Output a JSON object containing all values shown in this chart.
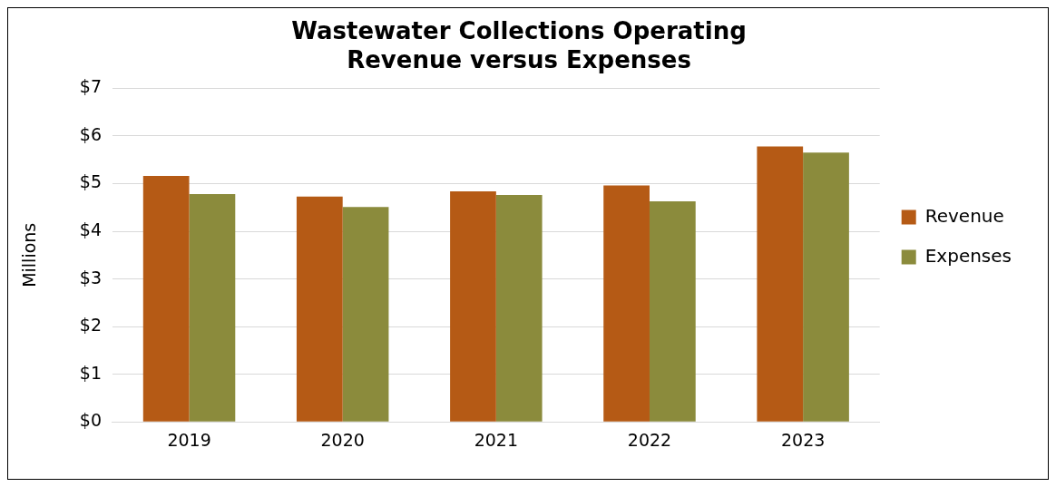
{
  "chart_data": {
    "type": "bar",
    "title": "Wastewater Collections Operating\nRevenue versus Expenses",
    "ylabel": "Millions",
    "categories": [
      "2019",
      "2020",
      "2021",
      "2022",
      "2023"
    ],
    "series": [
      {
        "name": "Revenue",
        "color": "#b55a15",
        "values": [
          5.16,
          4.73,
          4.84,
          4.96,
          5.78
        ]
      },
      {
        "name": "Expenses",
        "color": "#8b8b3c",
        "values": [
          4.78,
          4.51,
          4.76,
          4.63,
          5.65
        ]
      }
    ],
    "ylim": [
      0,
      7
    ],
    "yticks": [
      {
        "value": 0,
        "label": "$0"
      },
      {
        "value": 1,
        "label": "$1"
      },
      {
        "value": 2,
        "label": "$2"
      },
      {
        "value": 3,
        "label": "$3"
      },
      {
        "value": 4,
        "label": "$4"
      },
      {
        "value": 5,
        "label": "$5"
      },
      {
        "value": 6,
        "label": "$6"
      },
      {
        "value": 7,
        "label": "$7"
      }
    ],
    "grid": "y",
    "legend": "right"
  }
}
